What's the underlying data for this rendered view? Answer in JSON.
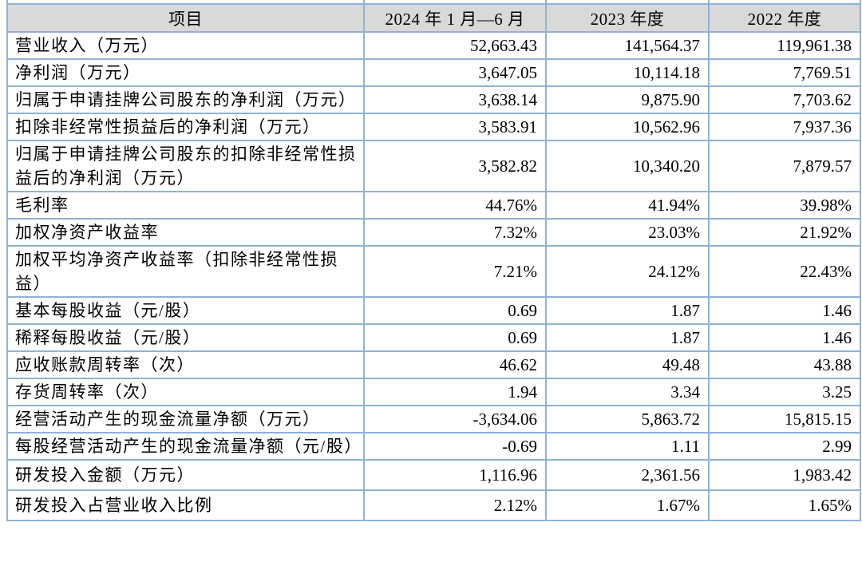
{
  "table": {
    "header_bg": "#d9d9d9",
    "border_color": "#8fb2d9",
    "columns": [
      "项目",
      "2024 年 1 月—6 月",
      "2023 年度",
      "2022 年度"
    ],
    "rows": [
      {
        "label": "营业收入（万元）",
        "values": [
          "52,663.43",
          "141,564.37",
          "119,961.38"
        ]
      },
      {
        "label": "净利润（万元）",
        "values": [
          "3,647.05",
          "10,114.18",
          "7,769.51"
        ]
      },
      {
        "label": "归属于申请挂牌公司股东的净利润（万元）",
        "values": [
          "3,638.14",
          "9,875.90",
          "7,703.62"
        ]
      },
      {
        "label": "扣除非经常性损益后的净利润（万元）",
        "values": [
          "3,583.91",
          "10,562.96",
          "7,937.36"
        ]
      },
      {
        "label": "归属于申请挂牌公司股东的扣除非经常性损益后的净利润（万元）",
        "values": [
          "3,582.82",
          "10,340.20",
          "7,879.57"
        ]
      },
      {
        "label": "毛利率",
        "values": [
          "44.76%",
          "41.94%",
          "39.98%"
        ]
      },
      {
        "label": "加权净资产收益率",
        "values": [
          "7.32%",
          "23.03%",
          "21.92%"
        ]
      },
      {
        "label": "加权平均净资产收益率（扣除非经常性损益）",
        "values": [
          "7.21%",
          "24.12%",
          "22.43%"
        ]
      },
      {
        "label": "基本每股收益（元/股）",
        "values": [
          "0.69",
          "1.87",
          "1.46"
        ]
      },
      {
        "label": "稀释每股收益（元/股）",
        "values": [
          "0.69",
          "1.87",
          "1.46"
        ]
      },
      {
        "label": "应收账款周转率（次）",
        "values": [
          "46.62",
          "49.48",
          "43.88"
        ]
      },
      {
        "label": "存货周转率（次）",
        "values": [
          "1.94",
          "3.34",
          "3.25"
        ]
      },
      {
        "label": "经营活动产生的现金流量净额（万元）",
        "values": [
          "-3,634.06",
          "5,863.72",
          "15,815.15"
        ]
      },
      {
        "label": "每股经营活动产生的现金流量净额（元/股）",
        "values": [
          "-0.69",
          "1.11",
          "2.99"
        ]
      },
      {
        "label": "研发投入金额（万元）",
        "values": [
          "1,116.96",
          "2,361.56",
          "1,983.42"
        ]
      },
      {
        "label": "研发投入占营业收入比例",
        "values": [
          "2.12%",
          "1.67%",
          "1.65%"
        ]
      }
    ]
  }
}
